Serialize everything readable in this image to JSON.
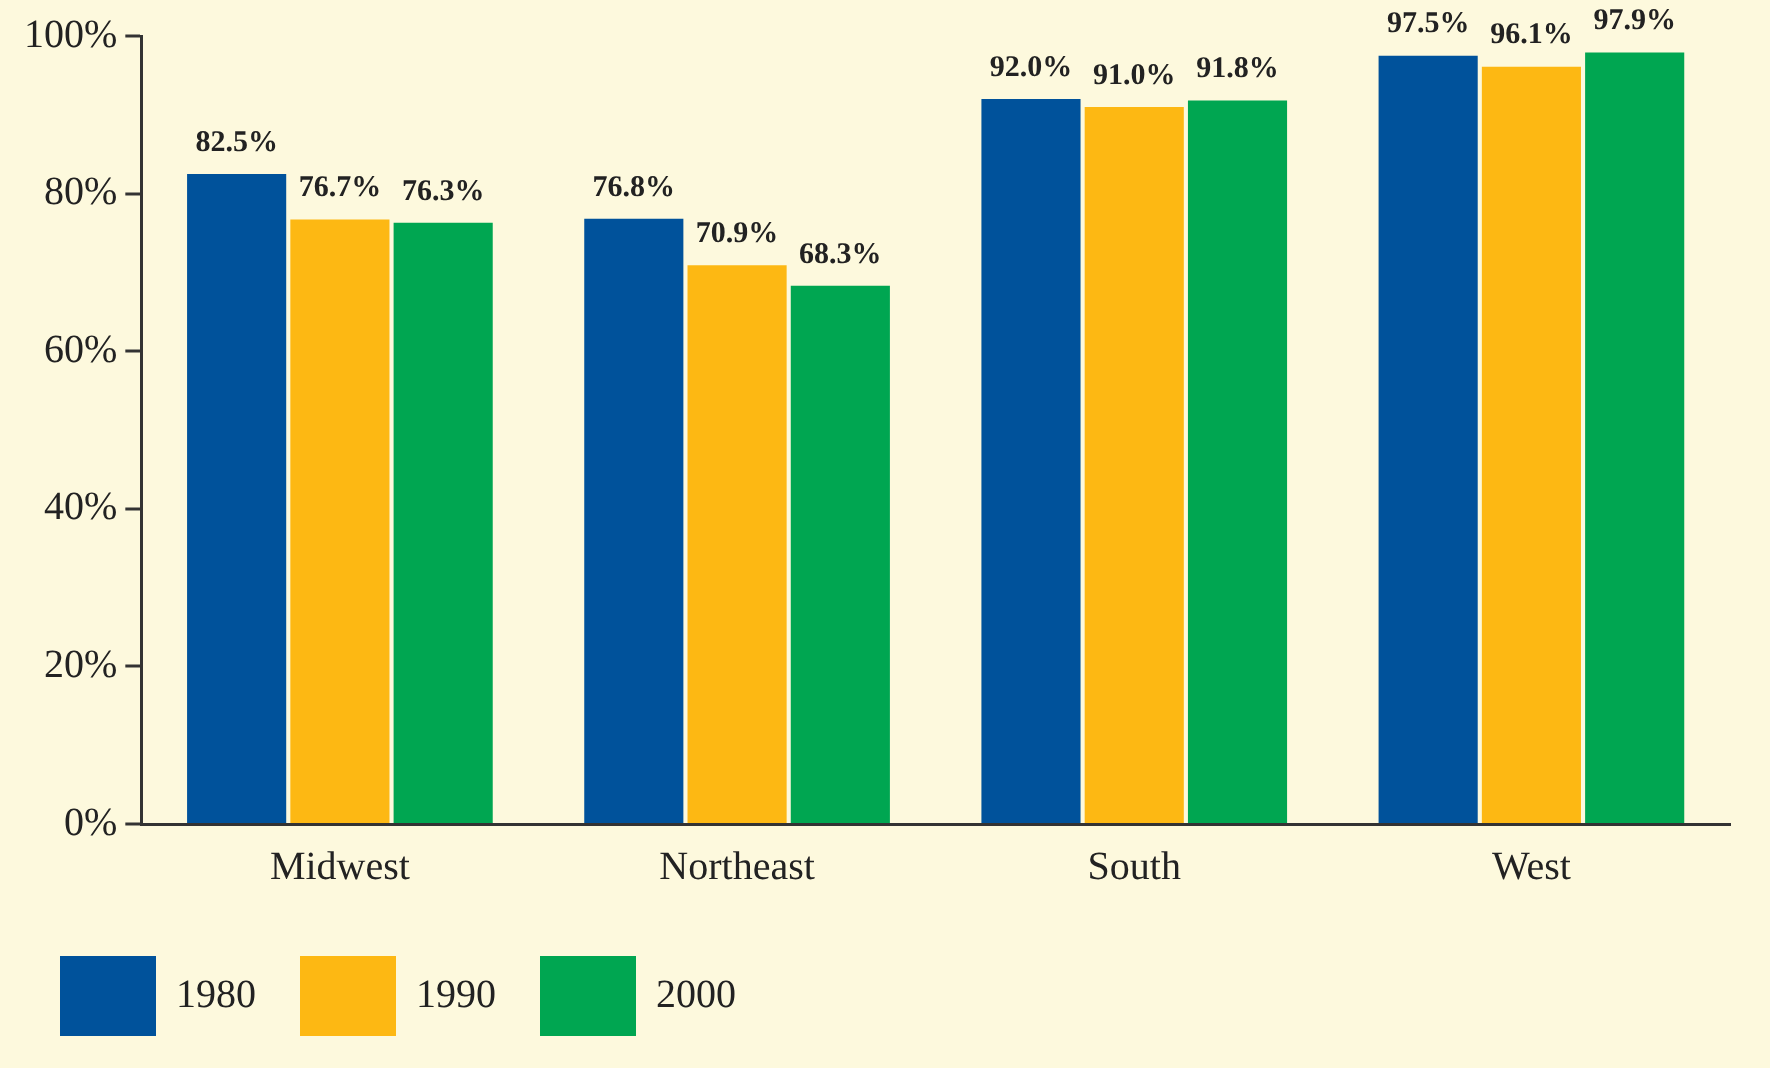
{
  "chart_data": {
    "type": "bar",
    "categories": [
      "Midwest",
      "Northeast",
      "South",
      "West"
    ],
    "series": [
      {
        "name": "1980",
        "color": "#00529b",
        "values": [
          82.5,
          76.8,
          92.0,
          97.5
        ],
        "value_labels": [
          "82.5%",
          "76.8%",
          "92.0%",
          "97.5%"
        ]
      },
      {
        "name": "1990",
        "color": "#fdb813",
        "values": [
          76.7,
          70.9,
          91.0,
          96.1
        ],
        "value_labels": [
          "76.7%",
          "70.9%",
          "91.0%",
          "96.1%"
        ]
      },
      {
        "name": "2000",
        "color": "#00a651",
        "values": [
          76.3,
          68.3,
          91.8,
          97.9
        ],
        "value_labels": [
          "76.3%",
          "68.3%",
          "91.8%",
          "97.9%"
        ]
      }
    ],
    "ylim": [
      0,
      100
    ],
    "yticks": [
      {
        "value": 0,
        "label": "0%"
      },
      {
        "value": 20,
        "label": "20%"
      },
      {
        "value": 40,
        "label": "40%"
      },
      {
        "value": 60,
        "label": "60%"
      },
      {
        "value": 80,
        "label": "80%"
      },
      {
        "value": 100,
        "label": "100%"
      }
    ],
    "grid": false,
    "legend": "bottom"
  }
}
